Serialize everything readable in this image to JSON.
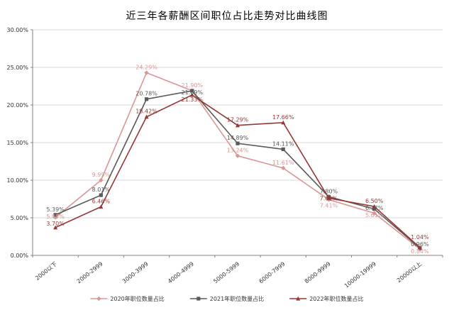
{
  "chart_data": {
    "type": "line",
    "title": "近三年各薪酬区间职位占比走势对比曲线图",
    "categories": [
      "2000以下",
      "2000-2999",
      "3000-3999",
      "4000-4999",
      "5000-5999",
      "6000-7999",
      "8000-9999",
      "10000-19999",
      "20000以上"
    ],
    "series": [
      {
        "name": "2020年职位数量占比",
        "color": "#d99694",
        "marker": "diamond",
        "values": [
          5.05,
          9.99,
          24.29,
          21.9,
          13.24,
          11.61,
          7.41,
          5.61,
          0.84
        ]
      },
      {
        "name": "2021年职位数量占比",
        "color": "#595959",
        "marker": "square",
        "values": [
          5.39,
          8.01,
          20.78,
          21.89,
          14.89,
          14.11,
          7.8,
          6.17,
          0.96
        ]
      },
      {
        "name": "2022年职位数量占比",
        "color": "#953735",
        "marker": "triangle",
        "values": [
          3.7,
          6.46,
          18.42,
          21.33,
          17.29,
          17.66,
          7.61,
          6.5,
          1.04
        ]
      }
    ],
    "ylim": [
      0,
      30
    ],
    "y_tick_step": 5,
    "y_tick_suffix": "%",
    "grid": "horizontal",
    "legend_position": "bottom",
    "background": "#ffffff",
    "axis_color": "#808080",
    "grid_color": "#d9d9d9",
    "label_color": "#333333"
  }
}
